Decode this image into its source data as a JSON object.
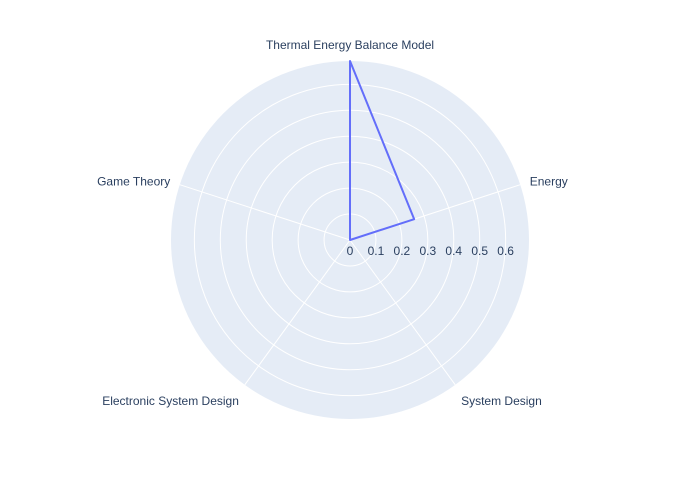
{
  "chart_data": {
    "type": "radar",
    "categories": [
      "Thermal Energy Balance Model",
      "Energy",
      "System Design",
      "Electronic System Design",
      "Game Theory"
    ],
    "series": [
      {
        "values": [
          0.69,
          0.26,
          0.0,
          0.0,
          0.0
        ]
      }
    ],
    "radial_range": [
      0,
      0.69
    ],
    "radial_ticks": [
      "0",
      "0.1",
      "0.2",
      "0.3",
      "0.4",
      "0.5",
      "0.6"
    ],
    "grid": true,
    "colors": {
      "background": "#e5ecf6",
      "grid": "#ffffff",
      "line": "#636efa",
      "text": "#2a3f5f"
    }
  }
}
